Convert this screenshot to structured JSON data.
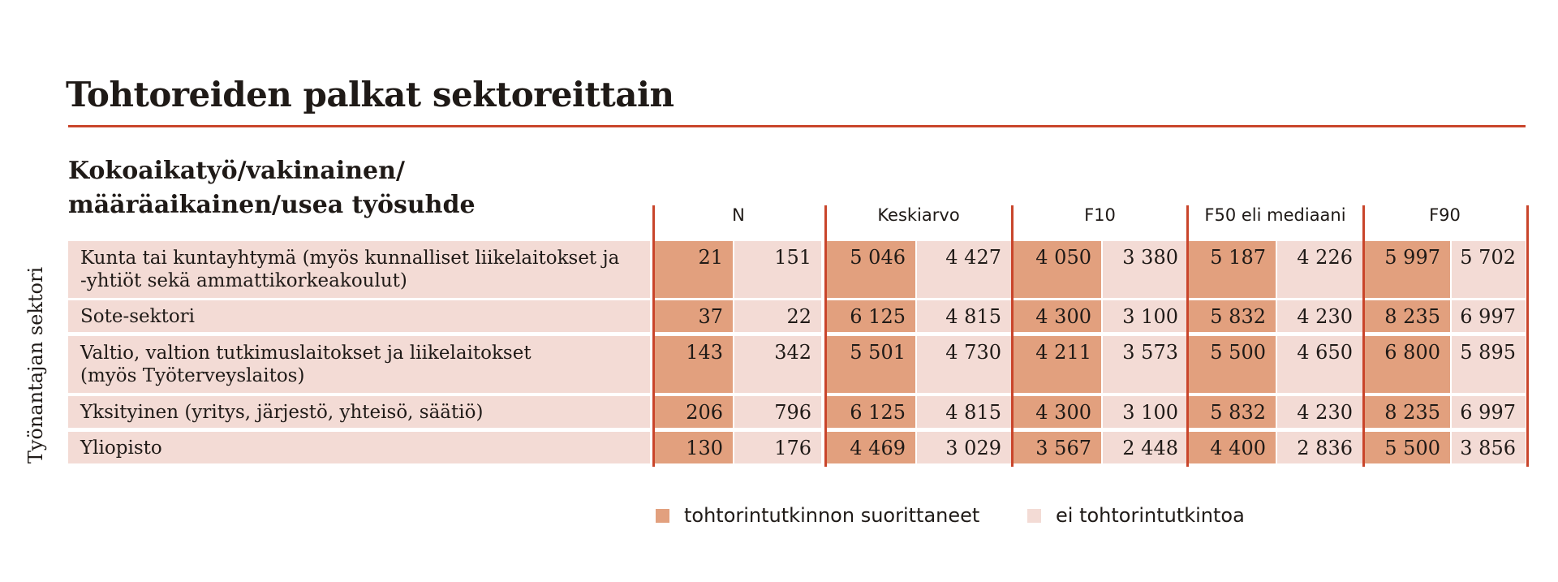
{
  "title": "Tohtoreiden palkat sektoreittain",
  "subtitle_lines": [
    "Kokoaikatyö/vakinainen/",
    "määräaikainen/usea työsuhde"
  ],
  "row_axis_label": "Työnantajan sektori",
  "colors": {
    "accent": "#c9452b",
    "doctorate": "#e2a07e",
    "no_doctorate": "#f3dbd5",
    "text": "#1f1a17"
  },
  "chart_data": {
    "type": "table",
    "title": "Tohtoreiden palkat sektoreittain",
    "column_groups": [
      "N",
      "Keskiarvo",
      "F10",
      "F50 eli mediaani",
      "F90"
    ],
    "series": [
      {
        "name": "tohtorintutkinnon suorittaneet"
      },
      {
        "name": "ei tohtorintutkintoa"
      }
    ],
    "rows": [
      {
        "label_lines": [
          "Kunta tai kuntayhtymä (myös kunnalliset liikelaitokset ja",
          "-yhtiöt sekä ammattikorkeakoulut)"
        ],
        "values": [
          "21",
          "151",
          "5 046",
          "4 427",
          "4 050",
          "3 380",
          "5 187",
          "4 226",
          "5 997",
          "5 702"
        ]
      },
      {
        "label_lines": [
          "Sote-sektori"
        ],
        "values": [
          "37",
          "22",
          "6 125",
          "4 815",
          "4 300",
          "3 100",
          "5 832",
          "4 230",
          "8 235",
          "6 997"
        ]
      },
      {
        "label_lines": [
          "Valtio, valtion tutkimuslaitokset ja liikelaitokset",
          "(myös Työterveyslaitos)"
        ],
        "values": [
          "143",
          "342",
          "5 501",
          "4 730",
          "4 211",
          "3 573",
          "5 500",
          "4 650",
          "6 800",
          "5 895"
        ]
      },
      {
        "label_lines": [
          "Yksityinen (yritys, järjestö, yhteisö, säätiö)"
        ],
        "values": [
          "206",
          "796",
          "6 125",
          "4 815",
          "4 300",
          "3 100",
          "5 832",
          "4 230",
          "8 235",
          "6 997"
        ]
      },
      {
        "label_lines": [
          "Yliopisto"
        ],
        "values": [
          "130",
          "176",
          "4 469",
          "3 029",
          "3 567",
          "2 448",
          "4 400",
          "2 836",
          "5 500",
          "3 856"
        ]
      }
    ],
    "legend": [
      {
        "label": "tohtorintutkinnon suorittaneet",
        "color": "#e2a07e"
      },
      {
        "label": "ei tohtorintutkintoa",
        "color": "#f3dbd5"
      }
    ],
    "legend_position": "bottom"
  }
}
